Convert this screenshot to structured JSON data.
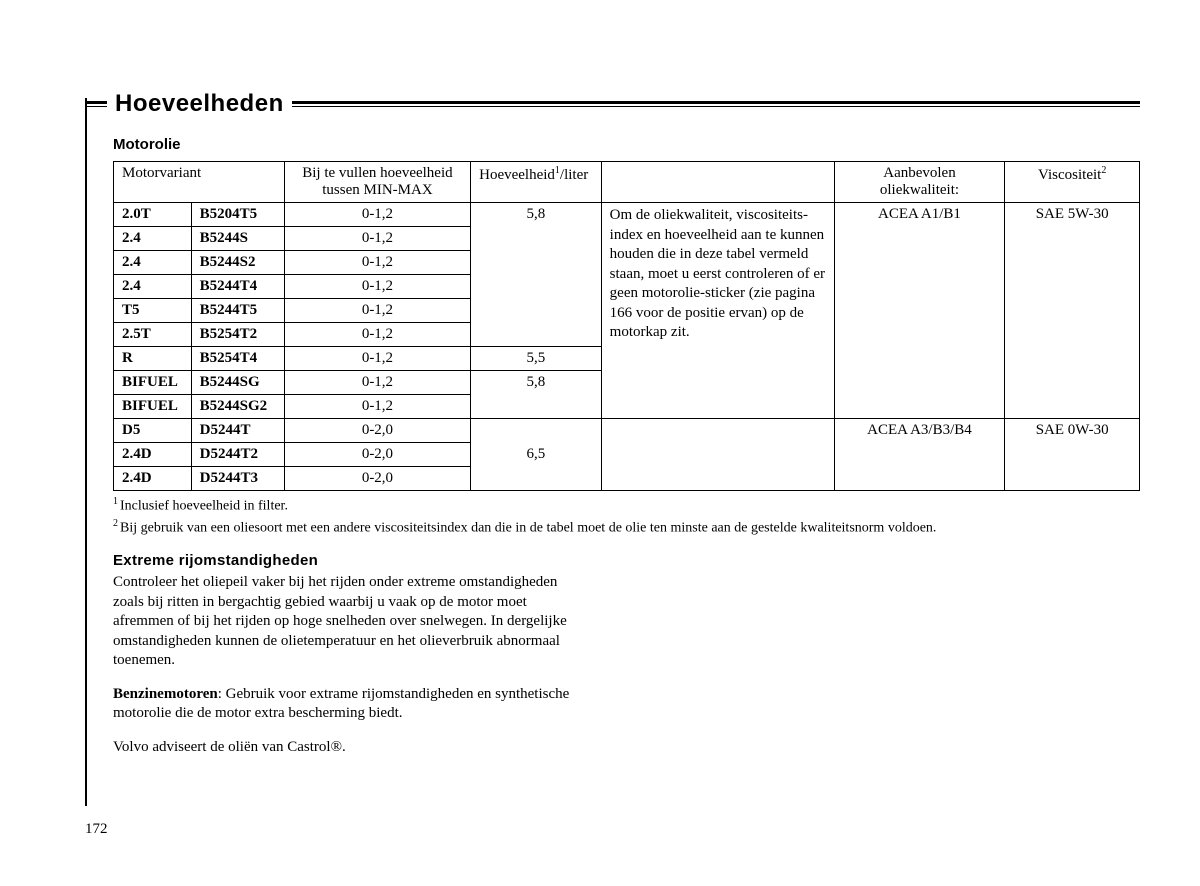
{
  "page": {
    "title": "Hoeveelheden",
    "section_title": "Motorolie",
    "page_number": "172"
  },
  "table": {
    "headers": {
      "variant": "Motorvariant",
      "fill_line1": "Bij te vullen hoeveelheid",
      "fill_line2": "tussen  MIN-MAX",
      "qty_prefix": "Hoeveelheid",
      "qty_super": "1",
      "qty_suffix": "/liter",
      "rec_line1": "Aanbevolen",
      "rec_line2": "oliekwaliteit:",
      "visc_prefix": "Viscositeit",
      "visc_super": "2"
    },
    "note_text": "Om de oliekwaliteit, viscositeits-index en hoeveelheid aan te kunnen houden die in deze tabel vermeld staan, moet u eerst controleren of er geen motorolie-sticker (zie pagina 166 voor de positie ervan) op de motorkap zit.",
    "rows": [
      {
        "a": "2.0T",
        "b": "B5204T5",
        "fill": "0-1,2"
      },
      {
        "a": "2.4",
        "b": "B5244S",
        "fill": "0-1,2"
      },
      {
        "a": "2.4",
        "b": "B5244S2",
        "fill": "0-1,2"
      },
      {
        "a": "2.4",
        "b": "B5244T4",
        "fill": "0-1,2"
      },
      {
        "a": "T5",
        "b": "B5244T5",
        "fill": "0-1,2"
      },
      {
        "a": "2.5T",
        "b": "B5254T2",
        "fill": "0-1,2"
      },
      {
        "a": "R",
        "b": "B5254T4",
        "fill": "0-1,2"
      },
      {
        "a": "BIFUEL",
        "b": "B5244SG",
        "fill": "0-1,2"
      },
      {
        "a": "BIFUEL",
        "b": "B5244SG2",
        "fill": "0-1,2"
      },
      {
        "a": "D5",
        "b": "D5244T",
        "fill": "0-2,0"
      },
      {
        "a": "2.4D",
        "b": "D5244T2",
        "fill": "0-2,0"
      },
      {
        "a": "2.4D",
        "b": "D5244T3",
        "fill": "0-2,0"
      }
    ],
    "qty": {
      "g1": "5,8",
      "r7": "5,5",
      "r8": "5,8",
      "g2": "6,5"
    },
    "rec": {
      "g1": "ACEA A1/B1",
      "g2": "ACEA A3/B3/B4"
    },
    "visc": {
      "g1": "SAE 5W-30",
      "g2": "SAE 0W-30"
    }
  },
  "footnotes": {
    "n1": "Inclusief hoeveelheid in filter.",
    "n2": "Bij gebruik van een oliesoort met een andere viscositeitsindex dan die in de tabel moet de olie ten minste aan de gestelde kwaliteitsnorm voldoen."
  },
  "extreme": {
    "heading": "Extreme  rijomstandigheden",
    "p1": "Controleer het oliepeil vaker bij het rijden onder extreme omstandigheden zoals bij ritten in bergachtig gebied waarbij u vaak op de motor moet afremmen of bij het rijden op hoge snelheden over snelwegen. In dergelijke omstandigheden kunnen de olietemperatuur en het olieverbruik abnormaal toenemen.",
    "p2_bold": "Benzinemotoren",
    "p2_rest": ": Gebruik voor extrame rijomstandigheden en synthetische motorolie die de motor extra bescherming biedt.",
    "p3": "Volvo adviseert de oliën van Castrol®."
  }
}
